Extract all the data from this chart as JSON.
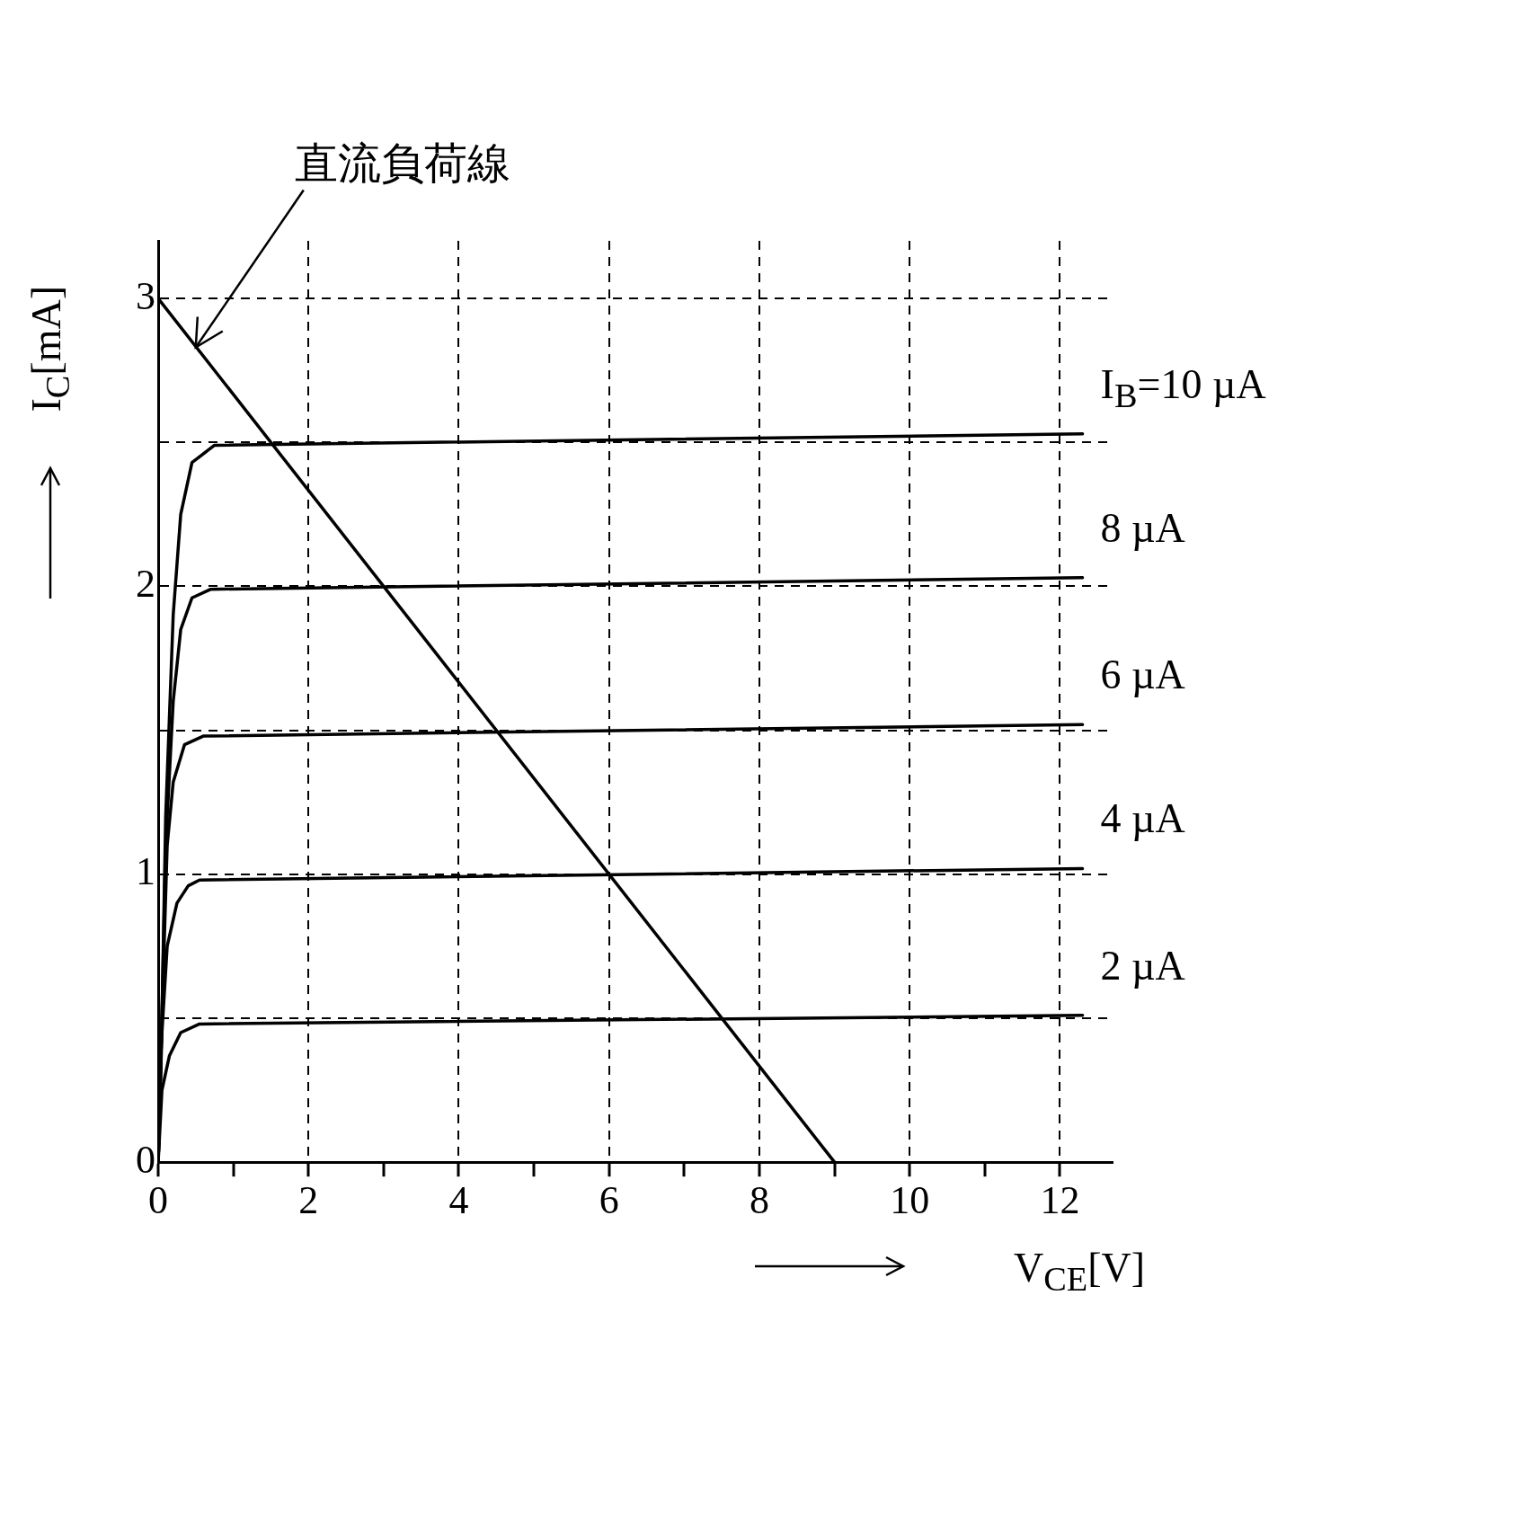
{
  "chart_data": {
    "type": "line",
    "xlabel": "V$_{CE}$[V]",
    "ylabel": "I$_{C}$[mA]",
    "annotations": [
      {
        "text": "直流負荷線",
        "x": 0.5,
        "y": 2.83
      }
    ],
    "series": [
      {
        "name": "I$_{B}$=10 µA",
        "color": "#000000",
        "x": [
          0,
          0.05,
          0.1,
          0.2,
          0.3,
          0.45,
          0.75,
          12.3
        ],
        "values": [
          0,
          0.5,
          1.2,
          1.9,
          2.25,
          2.43,
          2.49,
          2.53
        ]
      },
      {
        "name": "8 µA",
        "color": "#000000",
        "x": [
          0,
          0.05,
          0.1,
          0.2,
          0.3,
          0.45,
          0.7,
          12.3
        ],
        "values": [
          0,
          0.5,
          1.1,
          1.6,
          1.85,
          1.96,
          1.99,
          2.03
        ]
      },
      {
        "name": "6 µA",
        "color": "#000000",
        "x": [
          0,
          0.05,
          0.12,
          0.2,
          0.35,
          0.6,
          12.3
        ],
        "values": [
          0,
          0.5,
          1.1,
          1.32,
          1.45,
          1.48,
          1.52
        ]
      },
      {
        "name": "4 µA",
        "color": "#000000",
        "x": [
          0,
          0.05,
          0.12,
          0.25,
          0.4,
          0.55,
          12.3
        ],
        "values": [
          0,
          0.45,
          0.75,
          0.9,
          0.96,
          0.98,
          1.02
        ]
      },
      {
        "name": "2 µA",
        "color": "#000000",
        "x": [
          0,
          0.05,
          0.15,
          0.3,
          0.55,
          12.3
        ],
        "values": [
          0,
          0.25,
          0.37,
          0.45,
          0.48,
          0.51
        ]
      },
      {
        "color": "#000000",
        "x": [
          0,
          9
        ],
        "values": [
          3,
          0
        ]
      }
    ],
    "xlim": [
      0,
      12.7
    ],
    "ylim": [
      0,
      3.2
    ],
    "xticks": [
      0,
      {
        "value": 1,
        "label": null
      },
      2,
      {
        "value": 3,
        "label": null
      },
      4,
      {
        "value": 5,
        "label": null
      },
      6,
      {
        "value": 7,
        "label": null
      },
      8,
      {
        "value": 9,
        "label": null
      },
      10,
      {
        "value": 11,
        "label": null
      },
      12
    ],
    "yticks": [
      0,
      {
        "value": 0.5,
        "label": null
      },
      1,
      {
        "value": 1.5,
        "label": null
      },
      2,
      {
        "value": 2.5,
        "label": null
      },
      3
    ],
    "grid": true,
    "legend": false,
    "marker": "none",
    "line_style": "solid"
  }
}
